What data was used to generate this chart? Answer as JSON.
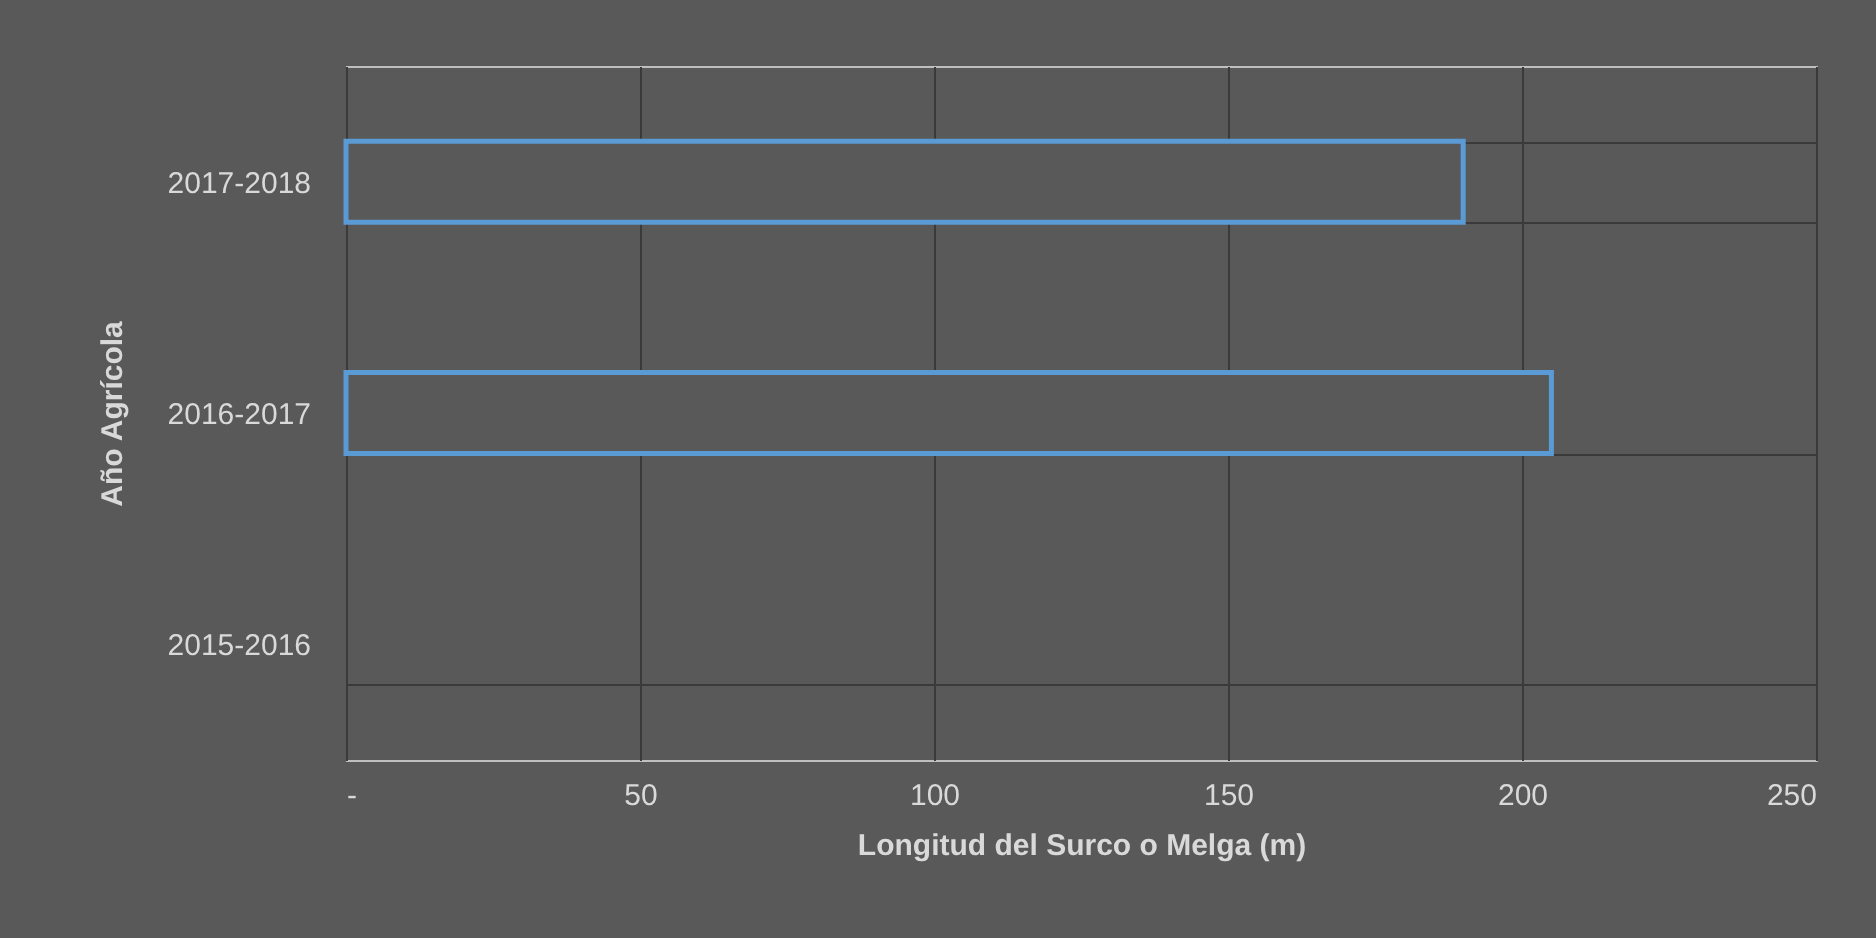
{
  "chart_data": {
    "type": "bar",
    "orientation": "horizontal",
    "xlabel": "Longitud del Surco o Melga (m)",
    "ylabel": "Año Agrícola",
    "categories": [
      "2017-2018",
      "2016-2017",
      "2015-2016"
    ],
    "values": [
      190,
      205,
      null
    ],
    "color": "#5b9bd5",
    "xlim": [
      0,
      250
    ],
    "xticks": [
      {
        "value": 0,
        "label": "-"
      },
      50,
      100,
      150,
      200,
      250
    ],
    "grid": true
  }
}
